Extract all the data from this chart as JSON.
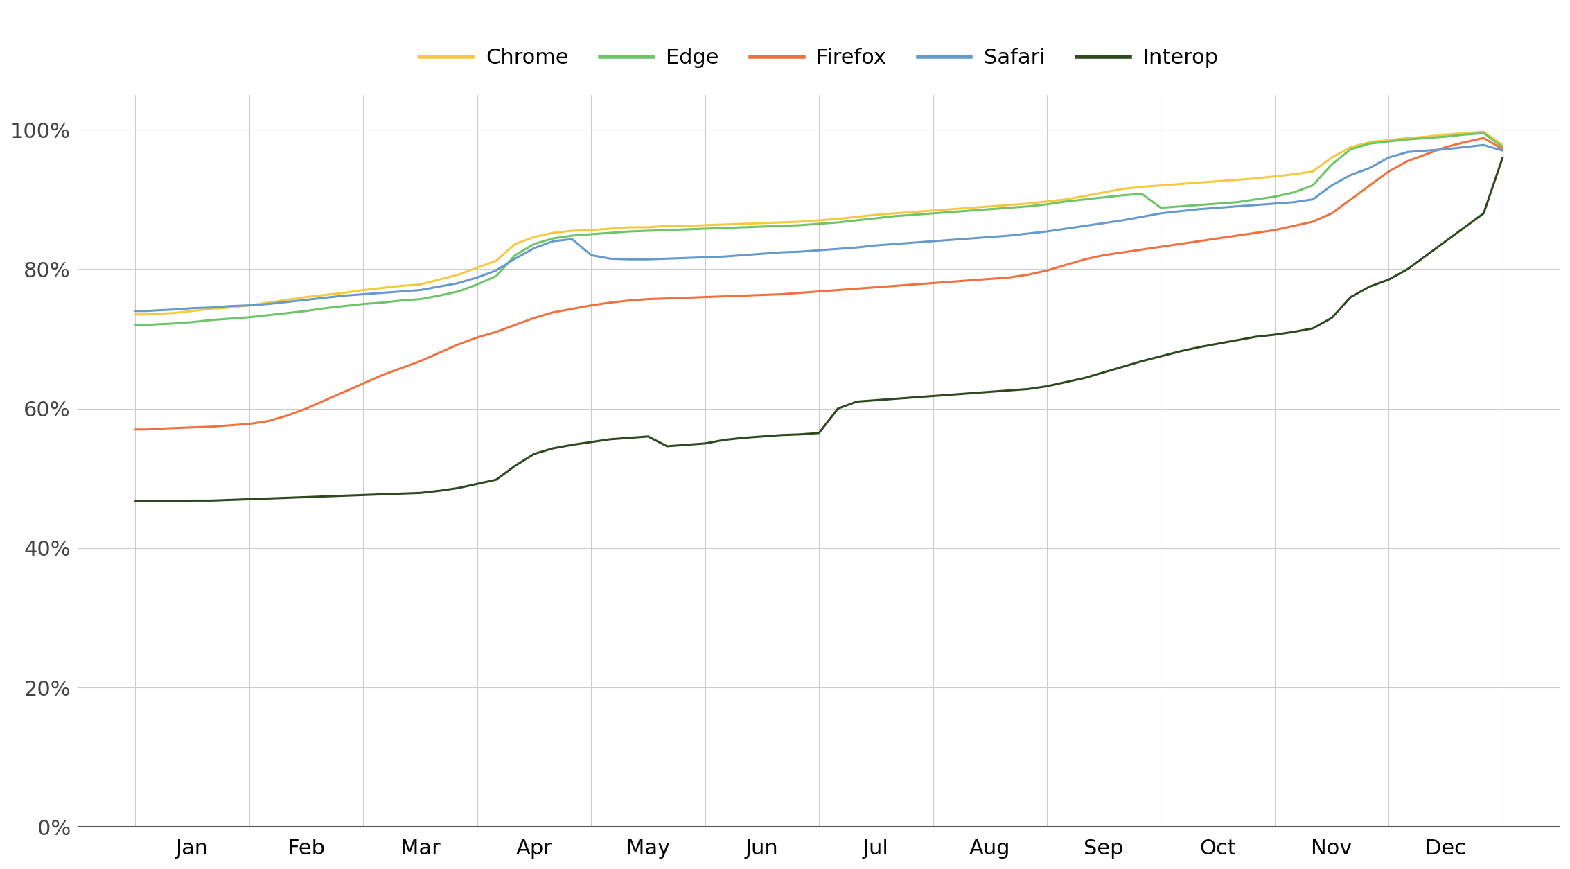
{
  "colors": {
    "Chrome": "#F5C842",
    "Edge": "#6EC469",
    "Firefox": "#F07040",
    "Safari": "#6699CC",
    "Interop": "#2D4A1E"
  },
  "line_width": 2.2,
  "background": "#ffffff",
  "grid_color": "#cccccc",
  "months": [
    "Jan",
    "Feb",
    "Mar",
    "Apr",
    "May",
    "Jun",
    "Jul",
    "Aug",
    "Sep",
    "Oct",
    "Nov",
    "Dec"
  ],
  "series": {
    "Chrome": [
      [
        0,
        0.735
      ],
      [
        3,
        0.735
      ],
      [
        6,
        0.736
      ],
      [
        10,
        0.737
      ],
      [
        15,
        0.74
      ],
      [
        20,
        0.743
      ],
      [
        25,
        0.745
      ],
      [
        30,
        0.748
      ],
      [
        35,
        0.752
      ],
      [
        40,
        0.756
      ],
      [
        45,
        0.76
      ],
      [
        50,
        0.763
      ],
      [
        55,
        0.766
      ],
      [
        60,
        0.77
      ],
      [
        65,
        0.773
      ],
      [
        70,
        0.776
      ],
      [
        75,
        0.778
      ],
      [
        80,
        0.785
      ],
      [
        85,
        0.792
      ],
      [
        90,
        0.802
      ],
      [
        95,
        0.812
      ],
      [
        100,
        0.836
      ],
      [
        105,
        0.846
      ],
      [
        110,
        0.852
      ],
      [
        115,
        0.855
      ],
      [
        120,
        0.856
      ],
      [
        125,
        0.858
      ],
      [
        130,
        0.86
      ],
      [
        135,
        0.86
      ],
      [
        140,
        0.862
      ],
      [
        145,
        0.862
      ],
      [
        150,
        0.863
      ],
      [
        155,
        0.864
      ],
      [
        160,
        0.865
      ],
      [
        165,
        0.866
      ],
      [
        170,
        0.867
      ],
      [
        175,
        0.868
      ],
      [
        180,
        0.87
      ],
      [
        185,
        0.872
      ],
      [
        190,
        0.875
      ],
      [
        195,
        0.878
      ],
      [
        200,
        0.88
      ],
      [
        205,
        0.882
      ],
      [
        210,
        0.884
      ],
      [
        215,
        0.886
      ],
      [
        220,
        0.888
      ],
      [
        225,
        0.89
      ],
      [
        230,
        0.892
      ],
      [
        235,
        0.894
      ],
      [
        240,
        0.897
      ],
      [
        245,
        0.9
      ],
      [
        250,
        0.905
      ],
      [
        255,
        0.91
      ],
      [
        260,
        0.915
      ],
      [
        265,
        0.918
      ],
      [
        270,
        0.92
      ],
      [
        275,
        0.922
      ],
      [
        280,
        0.924
      ],
      [
        285,
        0.926
      ],
      [
        290,
        0.928
      ],
      [
        295,
        0.93
      ],
      [
        300,
        0.933
      ],
      [
        305,
        0.936
      ],
      [
        310,
        0.94
      ],
      [
        315,
        0.96
      ],
      [
        320,
        0.975
      ],
      [
        325,
        0.982
      ],
      [
        330,
        0.985
      ],
      [
        335,
        0.988
      ],
      [
        340,
        0.99
      ],
      [
        345,
        0.993
      ],
      [
        350,
        0.995
      ],
      [
        355,
        0.997
      ],
      [
        360,
        0.978
      ]
    ],
    "Edge": [
      [
        0,
        0.72
      ],
      [
        3,
        0.72
      ],
      [
        6,
        0.721
      ],
      [
        10,
        0.722
      ],
      [
        15,
        0.724
      ],
      [
        20,
        0.727
      ],
      [
        25,
        0.729
      ],
      [
        30,
        0.731
      ],
      [
        35,
        0.734
      ],
      [
        40,
        0.737
      ],
      [
        45,
        0.74
      ],
      [
        50,
        0.744
      ],
      [
        55,
        0.747
      ],
      [
        60,
        0.75
      ],
      [
        65,
        0.752
      ],
      [
        70,
        0.755
      ],
      [
        75,
        0.757
      ],
      [
        80,
        0.762
      ],
      [
        85,
        0.768
      ],
      [
        90,
        0.778
      ],
      [
        95,
        0.79
      ],
      [
        100,
        0.82
      ],
      [
        105,
        0.836
      ],
      [
        110,
        0.844
      ],
      [
        115,
        0.848
      ],
      [
        120,
        0.85
      ],
      [
        125,
        0.852
      ],
      [
        130,
        0.854
      ],
      [
        135,
        0.855
      ],
      [
        140,
        0.856
      ],
      [
        145,
        0.857
      ],
      [
        150,
        0.858
      ],
      [
        155,
        0.859
      ],
      [
        160,
        0.86
      ],
      [
        165,
        0.861
      ],
      [
        170,
        0.862
      ],
      [
        175,
        0.863
      ],
      [
        180,
        0.865
      ],
      [
        185,
        0.867
      ],
      [
        190,
        0.87
      ],
      [
        195,
        0.873
      ],
      [
        200,
        0.876
      ],
      [
        205,
        0.878
      ],
      [
        210,
        0.88
      ],
      [
        215,
        0.882
      ],
      [
        220,
        0.884
      ],
      [
        225,
        0.886
      ],
      [
        230,
        0.888
      ],
      [
        235,
        0.89
      ],
      [
        240,
        0.893
      ],
      [
        245,
        0.897
      ],
      [
        250,
        0.9
      ],
      [
        255,
        0.903
      ],
      [
        260,
        0.906
      ],
      [
        265,
        0.908
      ],
      [
        270,
        0.888
      ],
      [
        275,
        0.89
      ],
      [
        280,
        0.892
      ],
      [
        285,
        0.894
      ],
      [
        290,
        0.896
      ],
      [
        295,
        0.9
      ],
      [
        300,
        0.904
      ],
      [
        305,
        0.91
      ],
      [
        310,
        0.92
      ],
      [
        315,
        0.95
      ],
      [
        320,
        0.972
      ],
      [
        325,
        0.98
      ],
      [
        330,
        0.983
      ],
      [
        335,
        0.986
      ],
      [
        340,
        0.988
      ],
      [
        345,
        0.99
      ],
      [
        350,
        0.993
      ],
      [
        355,
        0.995
      ],
      [
        360,
        0.975
      ]
    ],
    "Firefox": [
      [
        0,
        0.57
      ],
      [
        3,
        0.57
      ],
      [
        6,
        0.571
      ],
      [
        10,
        0.572
      ],
      [
        15,
        0.573
      ],
      [
        20,
        0.574
      ],
      [
        25,
        0.576
      ],
      [
        30,
        0.578
      ],
      [
        35,
        0.582
      ],
      [
        40,
        0.59
      ],
      [
        45,
        0.6
      ],
      [
        50,
        0.612
      ],
      [
        55,
        0.624
      ],
      [
        60,
        0.636
      ],
      [
        65,
        0.648
      ],
      [
        70,
        0.658
      ],
      [
        75,
        0.668
      ],
      [
        80,
        0.68
      ],
      [
        85,
        0.692
      ],
      [
        90,
        0.702
      ],
      [
        95,
        0.71
      ],
      [
        100,
        0.72
      ],
      [
        105,
        0.73
      ],
      [
        110,
        0.738
      ],
      [
        115,
        0.743
      ],
      [
        120,
        0.748
      ],
      [
        125,
        0.752
      ],
      [
        130,
        0.755
      ],
      [
        135,
        0.757
      ],
      [
        140,
        0.758
      ],
      [
        145,
        0.759
      ],
      [
        150,
        0.76
      ],
      [
        155,
        0.761
      ],
      [
        160,
        0.762
      ],
      [
        165,
        0.763
      ],
      [
        170,
        0.764
      ],
      [
        175,
        0.766
      ],
      [
        180,
        0.768
      ],
      [
        185,
        0.77
      ],
      [
        190,
        0.772
      ],
      [
        195,
        0.774
      ],
      [
        200,
        0.776
      ],
      [
        205,
        0.778
      ],
      [
        210,
        0.78
      ],
      [
        215,
        0.782
      ],
      [
        220,
        0.784
      ],
      [
        225,
        0.786
      ],
      [
        230,
        0.788
      ],
      [
        235,
        0.792
      ],
      [
        240,
        0.798
      ],
      [
        245,
        0.806
      ],
      [
        250,
        0.814
      ],
      [
        255,
        0.82
      ],
      [
        260,
        0.824
      ],
      [
        265,
        0.828
      ],
      [
        270,
        0.832
      ],
      [
        275,
        0.836
      ],
      [
        280,
        0.84
      ],
      [
        285,
        0.844
      ],
      [
        290,
        0.848
      ],
      [
        295,
        0.852
      ],
      [
        300,
        0.856
      ],
      [
        305,
        0.862
      ],
      [
        310,
        0.868
      ],
      [
        315,
        0.88
      ],
      [
        320,
        0.9
      ],
      [
        325,
        0.92
      ],
      [
        330,
        0.94
      ],
      [
        335,
        0.955
      ],
      [
        340,
        0.965
      ],
      [
        345,
        0.975
      ],
      [
        350,
        0.982
      ],
      [
        355,
        0.988
      ],
      [
        360,
        0.972
      ]
    ],
    "Safari": [
      [
        0,
        0.74
      ],
      [
        3,
        0.74
      ],
      [
        6,
        0.741
      ],
      [
        10,
        0.742
      ],
      [
        15,
        0.744
      ],
      [
        20,
        0.745
      ],
      [
        25,
        0.747
      ],
      [
        30,
        0.748
      ],
      [
        35,
        0.75
      ],
      [
        40,
        0.753
      ],
      [
        45,
        0.756
      ],
      [
        50,
        0.759
      ],
      [
        55,
        0.762
      ],
      [
        60,
        0.764
      ],
      [
        65,
        0.766
      ],
      [
        70,
        0.768
      ],
      [
        75,
        0.77
      ],
      [
        80,
        0.775
      ],
      [
        85,
        0.78
      ],
      [
        90,
        0.788
      ],
      [
        95,
        0.798
      ],
      [
        100,
        0.815
      ],
      [
        105,
        0.83
      ],
      [
        110,
        0.84
      ],
      [
        115,
        0.843
      ],
      [
        120,
        0.82
      ],
      [
        125,
        0.815
      ],
      [
        130,
        0.814
      ],
      [
        135,
        0.814
      ],
      [
        140,
        0.815
      ],
      [
        145,
        0.816
      ],
      [
        150,
        0.817
      ],
      [
        155,
        0.818
      ],
      [
        160,
        0.82
      ],
      [
        165,
        0.822
      ],
      [
        170,
        0.824
      ],
      [
        175,
        0.825
      ],
      [
        180,
        0.827
      ],
      [
        185,
        0.829
      ],
      [
        190,
        0.831
      ],
      [
        195,
        0.834
      ],
      [
        200,
        0.836
      ],
      [
        205,
        0.838
      ],
      [
        210,
        0.84
      ],
      [
        215,
        0.842
      ],
      [
        220,
        0.844
      ],
      [
        225,
        0.846
      ],
      [
        230,
        0.848
      ],
      [
        235,
        0.851
      ],
      [
        240,
        0.854
      ],
      [
        245,
        0.858
      ],
      [
        250,
        0.862
      ],
      [
        255,
        0.866
      ],
      [
        260,
        0.87
      ],
      [
        265,
        0.875
      ],
      [
        270,
        0.88
      ],
      [
        275,
        0.883
      ],
      [
        280,
        0.886
      ],
      [
        285,
        0.888
      ],
      [
        290,
        0.89
      ],
      [
        295,
        0.892
      ],
      [
        300,
        0.894
      ],
      [
        305,
        0.896
      ],
      [
        310,
        0.9
      ],
      [
        315,
        0.92
      ],
      [
        320,
        0.935
      ],
      [
        325,
        0.945
      ],
      [
        330,
        0.96
      ],
      [
        335,
        0.968
      ],
      [
        340,
        0.97
      ],
      [
        345,
        0.972
      ],
      [
        350,
        0.975
      ],
      [
        355,
        0.978
      ],
      [
        360,
        0.97
      ]
    ],
    "Interop": [
      [
        0,
        0.467
      ],
      [
        3,
        0.467
      ],
      [
        6,
        0.467
      ],
      [
        10,
        0.467
      ],
      [
        15,
        0.468
      ],
      [
        20,
        0.468
      ],
      [
        25,
        0.469
      ],
      [
        30,
        0.47
      ],
      [
        35,
        0.471
      ],
      [
        40,
        0.472
      ],
      [
        45,
        0.473
      ],
      [
        50,
        0.474
      ],
      [
        55,
        0.475
      ],
      [
        60,
        0.476
      ],
      [
        65,
        0.477
      ],
      [
        70,
        0.478
      ],
      [
        75,
        0.479
      ],
      [
        80,
        0.482
      ],
      [
        85,
        0.486
      ],
      [
        90,
        0.492
      ],
      [
        95,
        0.498
      ],
      [
        100,
        0.518
      ],
      [
        105,
        0.535
      ],
      [
        110,
        0.543
      ],
      [
        115,
        0.548
      ],
      [
        120,
        0.552
      ],
      [
        125,
        0.556
      ],
      [
        130,
        0.558
      ],
      [
        135,
        0.56
      ],
      [
        140,
        0.546
      ],
      [
        145,
        0.548
      ],
      [
        150,
        0.55
      ],
      [
        155,
        0.555
      ],
      [
        160,
        0.558
      ],
      [
        165,
        0.56
      ],
      [
        170,
        0.562
      ],
      [
        175,
        0.563
      ],
      [
        180,
        0.565
      ],
      [
        185,
        0.6
      ],
      [
        190,
        0.61
      ],
      [
        195,
        0.612
      ],
      [
        200,
        0.614
      ],
      [
        205,
        0.616
      ],
      [
        210,
        0.618
      ],
      [
        215,
        0.62
      ],
      [
        220,
        0.622
      ],
      [
        225,
        0.624
      ],
      [
        230,
        0.626
      ],
      [
        235,
        0.628
      ],
      [
        240,
        0.632
      ],
      [
        245,
        0.638
      ],
      [
        250,
        0.644
      ],
      [
        255,
        0.652
      ],
      [
        260,
        0.66
      ],
      [
        265,
        0.668
      ],
      [
        270,
        0.675
      ],
      [
        275,
        0.682
      ],
      [
        280,
        0.688
      ],
      [
        285,
        0.693
      ],
      [
        290,
        0.698
      ],
      [
        295,
        0.703
      ],
      [
        300,
        0.706
      ],
      [
        305,
        0.71
      ],
      [
        310,
        0.715
      ],
      [
        315,
        0.73
      ],
      [
        320,
        0.76
      ],
      [
        325,
        0.775
      ],
      [
        330,
        0.785
      ],
      [
        335,
        0.8
      ],
      [
        340,
        0.82
      ],
      [
        345,
        0.84
      ],
      [
        350,
        0.86
      ],
      [
        355,
        0.88
      ],
      [
        360,
        0.96
      ]
    ]
  },
  "yticks": [
    0.0,
    0.2,
    0.4,
    0.6,
    0.8,
    1.0
  ],
  "ylim": [
    0,
    1.05
  ],
  "xlim": [
    -15,
    375
  ],
  "month_tick_positions": [
    0,
    30,
    60,
    90,
    120,
    150,
    180,
    210,
    240,
    270,
    300,
    330
  ],
  "legend_labels": [
    "Chrome",
    "Edge",
    "Firefox",
    "Safari",
    "Interop"
  ],
  "font_size": 22,
  "tick_font_size": 22
}
